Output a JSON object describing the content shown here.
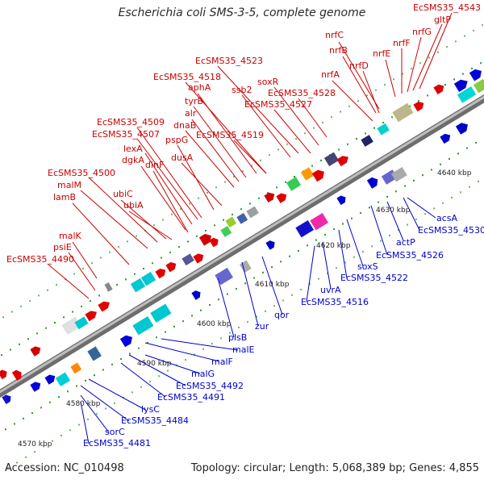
{
  "title": "Escherichia coli SMS-3-5, complete genome",
  "footer": {
    "accession": "Accession: NC_010498",
    "summary": "Topology: circular; Length: 5,068,389 bp; Genes: 4,855"
  },
  "colors": {
    "top_labels": "#cc0000",
    "bottom_labels": "#0000cc",
    "backbone": "#8a8a8a",
    "tick_dots": "#22aa22"
  },
  "ticks": [
    "4570 kbp",
    "4580 kbp",
    "4590 kbp",
    "4600 kbp",
    "4610 kbp",
    "4620 kbp",
    "4630 kbp",
    "4640 kbp"
  ],
  "top_labels": [
    "EcSMS35_4543",
    "gltP",
    "nrfG",
    "nrfF",
    "nrfE",
    "nrfC",
    "nrfB",
    "nrfD",
    "nrfA",
    "EcSMS35_4523",
    "soxR",
    "ssb2",
    "EcSMS35_4528",
    "EcSMS35_4527",
    "EcSMS35_4518",
    "aphA",
    "tyrB",
    "alr",
    "dnaB",
    "EcSMS35_4509",
    "EcSMS35_4507",
    "pspG",
    "EcSMS35_4519",
    "lexA",
    "dusA",
    "dgkA",
    "dinF",
    "EcSMS35_4500",
    "ubiC",
    "malM",
    "ubiA",
    "lamB",
    "malK",
    "psiE",
    "EcSMS35_4490"
  ],
  "bottom_labels": [
    "acsA",
    "EcSMS35_4530",
    "actP",
    "EcSMS35_4526",
    "soxS",
    "EcSMS35_4522",
    "uvrA",
    "EcSMS35_4516",
    "qor",
    "zur",
    "plsB",
    "malE",
    "malF",
    "malG",
    "EcSMS35_4492",
    "EcSMS35_4491",
    "lysC",
    "EcSMS35_4484",
    "sorC",
    "EcSMS35_4481"
  ]
}
